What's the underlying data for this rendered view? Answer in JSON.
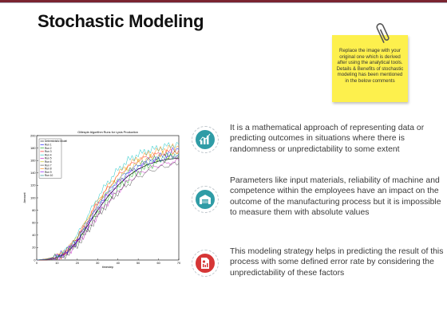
{
  "slide": {
    "title": "Stochastic Modeling",
    "accent_colors": {
      "top_bar": "#7a2430",
      "teal": "#2f9ca6",
      "red": "#d63636",
      "note": "#fdf04d"
    }
  },
  "note": {
    "text": "Replace the image with your original one which is derived after using the analytical tools. Details & Benefits of stochastic modeling has been mentioned in the below comments",
    "icon": "paperclip-icon"
  },
  "chart_data": {
    "type": "line",
    "title": "Gillespie Algorithm Runs for Lysis Production",
    "xlabel": "timestep",
    "ylabel": "Amount",
    "xlim": [
      0,
      70
    ],
    "ylim": [
      0,
      200
    ],
    "xticks": [
      0,
      10,
      20,
      30,
      40,
      50,
      60,
      70
    ],
    "yticks": [
      0,
      20,
      40,
      60,
      80,
      100,
      120,
      140,
      160,
      180,
      200
    ],
    "legend_position": "top-left",
    "x": [
      0,
      5,
      10,
      15,
      20,
      25,
      30,
      35,
      40,
      45,
      50,
      55,
      60,
      65,
      70
    ],
    "series": [
      {
        "name": "Deterministic Model",
        "color": "#000000",
        "values": [
          0,
          1,
          4,
          12,
          30,
          55,
          80,
          102,
          120,
          135,
          146,
          154,
          159,
          162,
          164
        ]
      },
      {
        "name": "Run 1",
        "color": "#0000ff",
        "values": [
          0,
          2,
          5,
          15,
          33,
          60,
          88,
          108,
          128,
          142,
          152,
          160,
          165,
          172,
          178
        ]
      },
      {
        "name": "Run 2",
        "color": "#00a000",
        "values": [
          0,
          1,
          3,
          10,
          28,
          50,
          75,
          96,
          115,
          130,
          142,
          150,
          158,
          164,
          168
        ]
      },
      {
        "name": "Run 3",
        "color": "#ff0000",
        "values": [
          0,
          0,
          4,
          14,
          35,
          62,
          92,
          115,
          135,
          150,
          160,
          166,
          170,
          174,
          176
        ]
      },
      {
        "name": "Run 4",
        "color": "#00bfbf",
        "values": [
          0,
          2,
          6,
          18,
          40,
          70,
          100,
          125,
          145,
          160,
          170,
          176,
          180,
          184,
          186
        ]
      },
      {
        "name": "Run 5",
        "color": "#bf00bf",
        "values": [
          0,
          1,
          3,
          11,
          27,
          48,
          72,
          92,
          110,
          126,
          138,
          146,
          152,
          156,
          160
        ]
      },
      {
        "name": "Run 6",
        "color": "#bfbf00",
        "values": [
          0,
          1,
          5,
          16,
          36,
          64,
          90,
          112,
          130,
          146,
          156,
          162,
          167,
          170,
          172
        ]
      },
      {
        "name": "Run 7",
        "color": "#404040",
        "values": [
          0,
          0,
          2,
          9,
          24,
          45,
          70,
          90,
          108,
          122,
          134,
          142,
          148,
          152,
          155
        ]
      },
      {
        "name": "Run 8",
        "color": "#ff8000",
        "values": [
          0,
          2,
          6,
          17,
          38,
          66,
          95,
          118,
          138,
          153,
          163,
          170,
          176,
          180,
          182
        ]
      },
      {
        "name": "Run 9",
        "color": "#8000ff",
        "values": [
          0,
          1,
          4,
          13,
          31,
          56,
          83,
          104,
          122,
          138,
          148,
          156,
          161,
          165,
          169
        ]
      },
      {
        "name": "Run 10",
        "color": "#008080",
        "values": [
          0,
          1,
          5,
          15,
          34,
          60,
          86,
          110,
          126,
          141,
          151,
          158,
          163,
          167,
          171
        ]
      }
    ]
  },
  "points": [
    {
      "icon": "bar-chart-icon",
      "color": "#2f9ca6",
      "text": "It is a mathematical approach of representing data or predicting outcomes in situations where there is randomness or unpredictability to some extent"
    },
    {
      "icon": "warehouse-icon",
      "color": "#2f9ca6",
      "text": "Parameters like input materials, reliability of machine and competence within the employees have an impact on the outcome of the manufacturing process but it is impossible to measure them with absolute values"
    },
    {
      "icon": "document-chart-icon",
      "color": "#d63636",
      "text": "This modeling strategy helps in predicting the result of this process with some defined error rate by considering the unpredictability of these factors"
    }
  ]
}
